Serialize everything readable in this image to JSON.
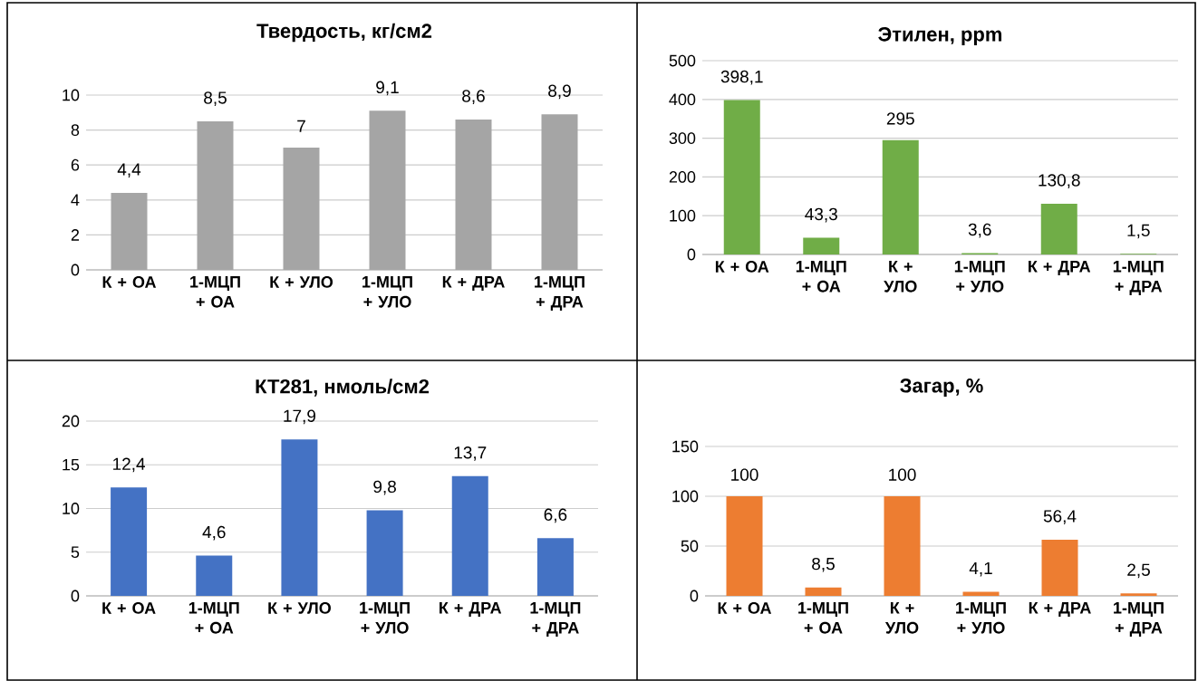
{
  "chart_data": [
    {
      "type": "bar",
      "title": "Твердость, кг/см2",
      "categories": [
        "К + ОА",
        "1-МЦП + ОА",
        "К + УЛО",
        "1-МЦП + УЛО",
        "К + ДРА",
        "1-МЦП + ДРА"
      ],
      "values": [
        4.4,
        8.5,
        7,
        9.1,
        8.6,
        8.9
      ],
      "value_labels": [
        "4,4",
        "8,5",
        "7",
        "9,1",
        "8,6",
        "8,9"
      ],
      "color": "#a5a5a5",
      "ylim": [
        0,
        10
      ],
      "yticks": [
        0,
        2,
        4,
        6,
        8,
        10
      ],
      "grid": "y"
    },
    {
      "type": "bar",
      "title": "Этилен, ppm",
      "categories": [
        "К + ОА",
        "1-МЦП + ОА",
        "К + УЛО",
        "1-МЦП + УЛО",
        "К + ДРА",
        "1-МЦП + ДРА"
      ],
      "values": [
        398.1,
        43.3,
        295,
        3.6,
        130.8,
        1.5
      ],
      "value_labels": [
        "398,1",
        "43,3",
        "295",
        "3,6",
        "130,8",
        "1,5"
      ],
      "color": "#70ad47",
      "ylim": [
        0,
        500
      ],
      "yticks": [
        0,
        100,
        200,
        300,
        400,
        500
      ],
      "grid": "y"
    },
    {
      "type": "bar",
      "title": "КТ281, нмоль/см2",
      "categories": [
        "К + ОА",
        "1-МЦП + ОА",
        "К + УЛО",
        "1-МЦП + УЛО",
        "К + ДРА",
        "1-МЦП + ДРА"
      ],
      "values": [
        12.4,
        4.6,
        17.9,
        9.8,
        13.7,
        6.6
      ],
      "value_labels": [
        "12,4",
        "4,6",
        "17,9",
        "9,8",
        "13,7",
        "6,6"
      ],
      "color": "#4472c4",
      "ylim": [
        0,
        20
      ],
      "yticks": [
        0,
        5,
        10,
        15,
        20
      ],
      "grid": "y"
    },
    {
      "type": "bar",
      "title": "Загар, %",
      "categories": [
        "К + ОА",
        "1-МЦП + ОА",
        "К + УЛО",
        "1-МЦП + УЛО",
        "К + ДРА",
        "1-МЦП + ДРА"
      ],
      "values": [
        100,
        8.5,
        100,
        4.1,
        56.4,
        2.5
      ],
      "value_labels": [
        "100",
        "8,5",
        "100",
        "4,1",
        "56,4",
        "2,5"
      ],
      "color": "#ed7d31",
      "ylim": [
        0,
        150
      ],
      "yticks": [
        0,
        50,
        100,
        150
      ],
      "grid": "y"
    }
  ]
}
